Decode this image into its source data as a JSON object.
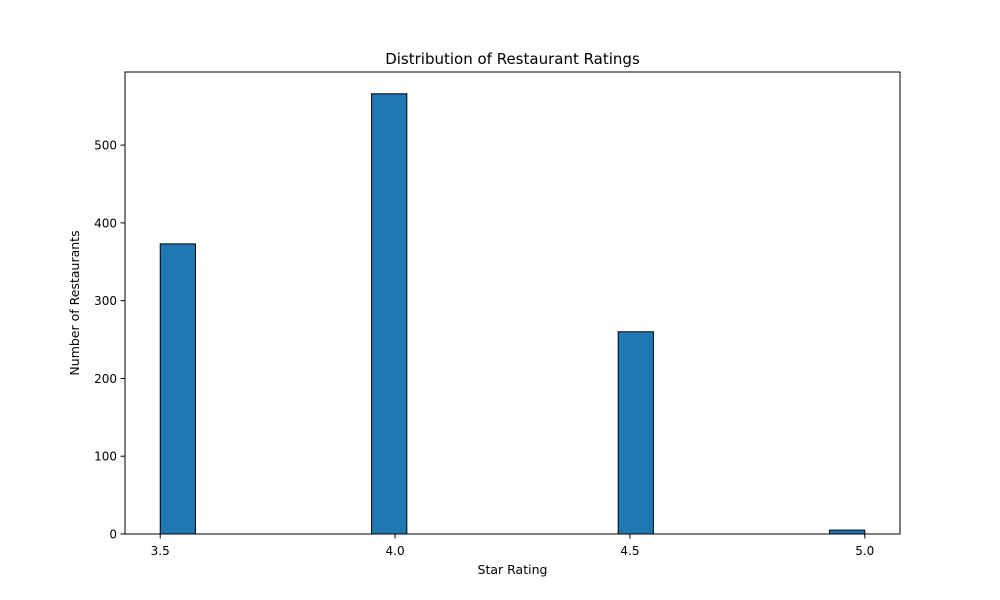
{
  "chart_data": {
    "type": "bar",
    "title": "Distribution of Restaurant Ratings",
    "xlabel": "Star Rating",
    "ylabel": "Number of Restaurants",
    "xlim": [
      3.425,
      5.075
    ],
    "ylim": [
      0,
      594
    ],
    "x_ticks": [
      3.5,
      4.0,
      4.5,
      5.0
    ],
    "x_tick_labels": [
      "3.5",
      "4.0",
      "4.5",
      "5.0"
    ],
    "y_ticks": [
      0,
      100,
      200,
      300,
      400,
      500
    ],
    "y_tick_labels": [
      "0",
      "100",
      "200",
      "300",
      "400",
      "500"
    ],
    "bins": [
      {
        "x_start": 3.5,
        "x_end": 3.575,
        "value": 373
      },
      {
        "x_start": 3.95,
        "x_end": 4.025,
        "value": 566
      },
      {
        "x_start": 4.475,
        "x_end": 4.55,
        "value": 260
      },
      {
        "x_start": 4.925,
        "x_end": 5.0,
        "value": 5
      }
    ],
    "grid": false,
    "legend": "none",
    "bar_color": "#1f77b4",
    "edge_color": "#000000"
  }
}
